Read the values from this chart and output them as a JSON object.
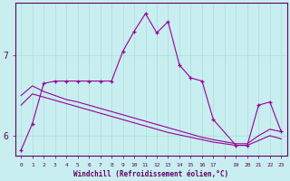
{
  "xlabel": "Windchill (Refroidissement éolien,°C)",
  "ylabel": "",
  "bg_color": "#c8eef0",
  "line_color": "#990099",
  "grid_color": "#aadddd",
  "axis_color": "#660066",
  "x_ticks": [
    0,
    1,
    2,
    3,
    4,
    5,
    6,
    7,
    8,
    9,
    10,
    11,
    12,
    13,
    14,
    15,
    16,
    17,
    19,
    20,
    21,
    22,
    23
  ],
  "xlim": [
    -0.5,
    23.5
  ],
  "ylim": [
    5.75,
    7.65
  ],
  "yticks": [
    6,
    7
  ],
  "series1_x": [
    0,
    1,
    2,
    3,
    4,
    5,
    6,
    7,
    8,
    9,
    10,
    11,
    12,
    13,
    14,
    15,
    16,
    17,
    19,
    20,
    21,
    22,
    23
  ],
  "series1_y": [
    5.82,
    6.15,
    6.65,
    6.68,
    6.68,
    6.68,
    6.68,
    6.68,
    6.68,
    7.05,
    7.3,
    7.52,
    7.28,
    7.42,
    6.88,
    6.72,
    6.68,
    6.2,
    5.88,
    5.88,
    6.38,
    6.42,
    6.05
  ],
  "series2_x": [
    0,
    1,
    2,
    3,
    4,
    5,
    6,
    7,
    8,
    9,
    10,
    11,
    12,
    13,
    14,
    15,
    16,
    17,
    19,
    20,
    21,
    22,
    23
  ],
  "series2_y": [
    6.5,
    6.62,
    6.55,
    6.5,
    6.45,
    6.42,
    6.38,
    6.34,
    6.3,
    6.26,
    6.22,
    6.18,
    6.14,
    6.1,
    6.06,
    6.02,
    5.98,
    5.95,
    5.9,
    5.9,
    6.0,
    6.08,
    6.05
  ],
  "series3_x": [
    0,
    1,
    2,
    3,
    4,
    5,
    6,
    7,
    8,
    9,
    10,
    11,
    12,
    13,
    14,
    15,
    16,
    17,
    19,
    20,
    21,
    22,
    23
  ],
  "series3_y": [
    6.38,
    6.52,
    6.48,
    6.44,
    6.4,
    6.36,
    6.32,
    6.28,
    6.24,
    6.2,
    6.16,
    6.12,
    6.08,
    6.04,
    6.01,
    5.98,
    5.95,
    5.92,
    5.88,
    5.88,
    5.94,
    6.0,
    5.96
  ]
}
